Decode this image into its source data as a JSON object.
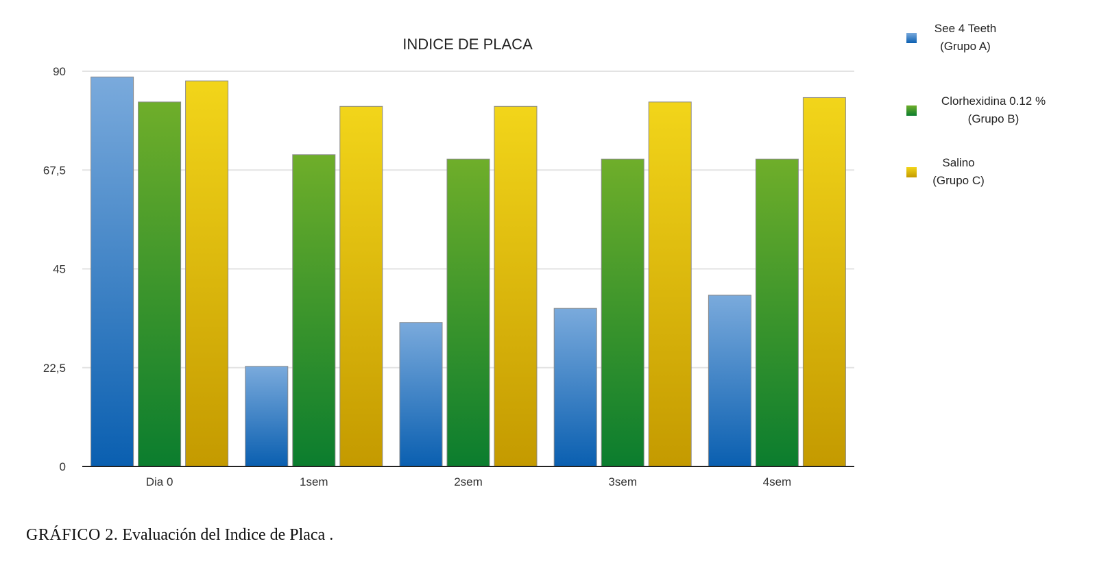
{
  "chart_data": {
    "type": "bar",
    "title": "INDICE DE PLACA",
    "xlabel": "",
    "ylabel": "",
    "categories": [
      "Dia 0",
      "1sem",
      "2sem",
      "3sem",
      "4sem"
    ],
    "yticks": [
      "0",
      "22,5",
      "45",
      "67,5",
      "90"
    ],
    "ylim": [
      0,
      90
    ],
    "grid": true,
    "legend_position": "right",
    "series": [
      {
        "name_line1": "See 4 Teeth",
        "name_line2": "(Grupo A)",
        "values": [
          88.7,
          22.8,
          32.8,
          36.0,
          39.0
        ],
        "color_top": "#7aaadc",
        "color_bottom": "#0a5fb0"
      },
      {
        "name_line1": "Clorhexidina 0.12 %",
        "name_line2": "(Grupo B)",
        "values": [
          83.0,
          71.0,
          70.0,
          70.0,
          70.0
        ],
        "color_top": "#6fae2a",
        "color_bottom": "#0b7d2e"
      },
      {
        "name_line1": "Salino",
        "name_line2": "(Grupo C)",
        "values": [
          87.8,
          82.0,
          82.0,
          83.0,
          84.0
        ],
        "color_top": "#f2d51a",
        "color_bottom": "#c49a00"
      }
    ]
  },
  "caption": {
    "label": "GRÁFICO 2.",
    "text": " Evaluación del Indice de Placa ."
  }
}
